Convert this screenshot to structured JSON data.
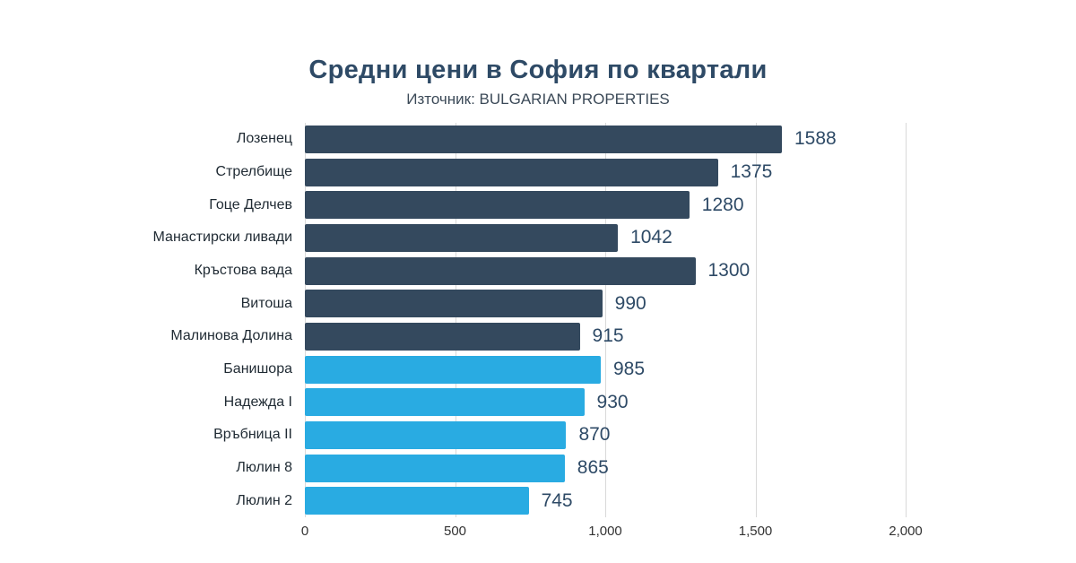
{
  "title": "Средни цени в София по квартали",
  "subtitle": "Източник: BULGARIAN PROPERTIES",
  "colors": {
    "dark_bar": "#34495e",
    "blue_bar": "#29abe2",
    "value_label": "#2e4a66",
    "gridline": "#d9d9d9",
    "axis_text": "#333333"
  },
  "chart_data": {
    "type": "bar",
    "orientation": "horizontal",
    "title": "Средни цени в София по квартали",
    "subtitle": "Източник: BULGARIAN PROPERTIES",
    "categories": [
      "Лозенец",
      "Стрелбище",
      "Гоце Делчев",
      "Манастирски ливади",
      "Кръстова вада",
      "Витоша",
      "Малинова Долина",
      "Банишора",
      "Надежда I",
      "Връбница II",
      "Люлин 8",
      "Люлин 2"
    ],
    "values": [
      1588,
      1375,
      1280,
      1042,
      1300,
      990,
      915,
      985,
      930,
      870,
      865,
      745
    ],
    "bar_colors": [
      "#34495e",
      "#34495e",
      "#34495e",
      "#34495e",
      "#34495e",
      "#34495e",
      "#34495e",
      "#29abe2",
      "#29abe2",
      "#29abe2",
      "#29abe2",
      "#29abe2"
    ],
    "xlim": [
      0,
      2000
    ],
    "xticks": [
      0,
      500,
      1000,
      1500,
      2000
    ],
    "xtick_labels": [
      "0",
      "500",
      "1,000",
      "1,500",
      "2,000"
    ],
    "grid": true,
    "legend": "none",
    "value_labels": true
  }
}
